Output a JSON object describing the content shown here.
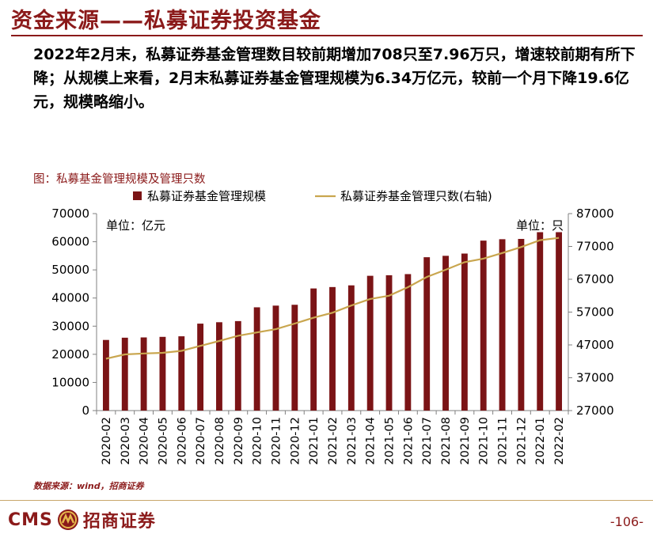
{
  "header": {
    "title": "资金来源——私募证券投资基金",
    "summary": "2022年2月末，私募证券基金管理数目较前期增加708只至7.96万只，增速较前期有所下降；从规模上来看，2月末私募证券基金管理规模为6.34万亿元，较前一个月下降19.6亿元，规模略缩小。"
  },
  "figure": {
    "caption": "图：私募基金管理规模及管理只数",
    "source": "数据来源：wind，招商证券"
  },
  "footer": {
    "brand_cms": "CMS",
    "brand_name": "招商证券",
    "page_number": "-106-"
  },
  "colors": {
    "bar": "#7b1416",
    "line": "#c9a64f",
    "accent": "#8b1a1a"
  },
  "chart_data": {
    "type": "bar",
    "categories": [
      "2020-02",
      "2020-03",
      "2020-04",
      "2020-05",
      "2020-06",
      "2020-07",
      "2020-08",
      "2020-09",
      "2020-10",
      "2020-11",
      "2020-12",
      "2021-01",
      "2021-02",
      "2021-03",
      "2021-04",
      "2021-05",
      "2021-06",
      "2021-07",
      "2021-08",
      "2021-09",
      "2021-10",
      "2021-11",
      "2021-12",
      "2022-01",
      "2022-02"
    ],
    "series": [
      {
        "name": "私募证券基金管理规模",
        "type": "bar",
        "axis": "left",
        "values": [
          25100,
          25900,
          26000,
          26200,
          26400,
          30900,
          31400,
          31800,
          36700,
          37300,
          37600,
          43400,
          43900,
          44500,
          47900,
          48100,
          48500,
          54500,
          55000,
          55800,
          60400,
          60900,
          61000,
          63400,
          63400
        ]
      },
      {
        "name": "私募证券基金管理只数(右轴)",
        "type": "line",
        "axis": "right",
        "values": [
          42800,
          44100,
          44400,
          44600,
          45200,
          46700,
          48200,
          49800,
          50800,
          51800,
          53500,
          55300,
          56800,
          59000,
          61000,
          62000,
          64600,
          67700,
          69900,
          72200,
          73300,
          75000,
          76800,
          78900,
          79600
        ]
      }
    ],
    "y_left": {
      "unit_label": "单位：亿元",
      "ylim": [
        0,
        70000
      ],
      "ticks": [
        0,
        10000,
        20000,
        30000,
        40000,
        50000,
        60000,
        70000
      ]
    },
    "y_right": {
      "unit_label": "单位：只",
      "ylim": [
        27000,
        87000
      ],
      "ticks": [
        27000,
        37000,
        47000,
        57000,
        67000,
        77000,
        87000
      ]
    },
    "legend_position": "top",
    "grid": false
  }
}
